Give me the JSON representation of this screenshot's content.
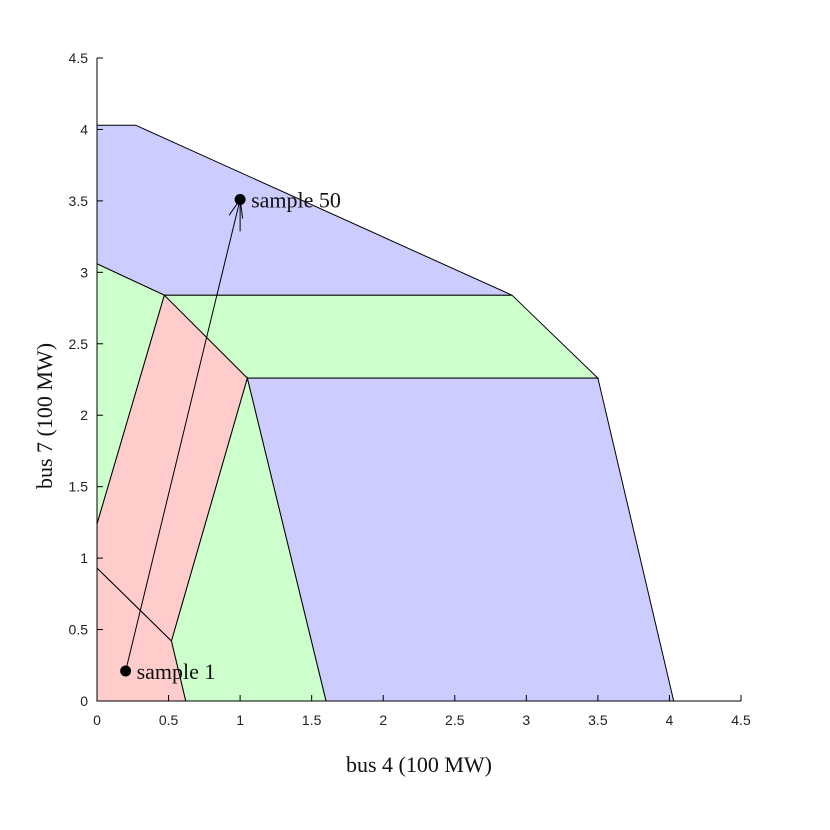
{
  "chart_data": {
    "type": "area",
    "xlabel": "bus 4 (100 MW)",
    "ylabel": "bus 7 (100 MW)",
    "xlim": [
      0,
      4.5
    ],
    "ylim": [
      0,
      4.5
    ],
    "xticks": [
      "0",
      "0.5",
      "1",
      "1.5",
      "2",
      "2.5",
      "3",
      "3.5",
      "4",
      "4.5"
    ],
    "yticks": [
      "0",
      "0.5",
      "1",
      "1.5",
      "2",
      "2.5",
      "3",
      "3.5",
      "4",
      "4.5"
    ],
    "grid": false,
    "colors": {
      "blue": "#ccccff",
      "green": "#ccffcc",
      "red": "#ffcccc"
    },
    "regions": [
      {
        "color": "blue",
        "points": [
          [
            0,
            4.03
          ],
          [
            0.27,
            4.03
          ],
          [
            2.9,
            2.84
          ],
          [
            0.47,
            2.84
          ],
          [
            0,
            3.06
          ]
        ]
      },
      {
        "color": "green",
        "points": [
          [
            0.47,
            2.84
          ],
          [
            2.9,
            2.84
          ],
          [
            3.5,
            2.26
          ],
          [
            1.05,
            2.26
          ]
        ]
      },
      {
        "color": "blue",
        "points": [
          [
            1.05,
            2.26
          ],
          [
            3.5,
            2.26
          ],
          [
            4.03,
            0
          ],
          [
            1.6,
            0
          ]
        ]
      },
      {
        "color": "green",
        "points": [
          [
            1.05,
            2.26
          ],
          [
            1.6,
            0
          ],
          [
            0.62,
            0
          ],
          [
            0.52,
            0.42
          ]
        ]
      },
      {
        "color": "red",
        "points": [
          [
            0.47,
            2.84
          ],
          [
            1.05,
            2.26
          ],
          [
            0.52,
            0.42
          ],
          [
            0,
            0.93
          ],
          [
            0,
            1.24
          ]
        ]
      },
      {
        "color": "green",
        "points": [
          [
            0,
            3.06
          ],
          [
            0.47,
            2.84
          ],
          [
            0,
            1.24
          ]
        ]
      },
      {
        "color": "red",
        "points": [
          [
            0,
            0.93
          ],
          [
            0.52,
            0.42
          ],
          [
            0.62,
            0
          ],
          [
            0,
            0
          ]
        ]
      }
    ],
    "samples": [
      {
        "label": "sample 1",
        "x": 0.2,
        "y": 0.21
      },
      {
        "label": "sample 50",
        "x": 1.0,
        "y": 3.51
      }
    ]
  }
}
